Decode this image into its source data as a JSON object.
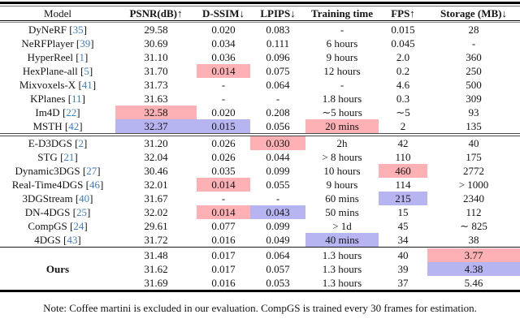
{
  "table": {
    "cite_color": "#3d7ec9",
    "highlight_colors": {
      "pink": "#fdb1b5",
      "blue": "#b7b5f1"
    },
    "columns": [
      {
        "label": "Model"
      },
      {
        "label": "PSNR(dB)↑"
      },
      {
        "label": "D-SSIM↓"
      },
      {
        "label": "LPIPS↓"
      },
      {
        "label": "Training time"
      },
      {
        "label": "FPS↑"
      },
      {
        "label": "Storage (MB)↓"
      }
    ],
    "groups": [
      {
        "rows": [
          {
            "model": "DyNeRF",
            "cite": "35",
            "values": [
              "29.58",
              "0.020",
              "0.083",
              "-",
              "0.015",
              "28"
            ],
            "hl": [
              null,
              null,
              null,
              null,
              null,
              null
            ]
          },
          {
            "model": "NeRFPlayer",
            "cite": "39",
            "values": [
              "30.69",
              "0.034",
              "0.111",
              "6 hours",
              "0.045",
              "-"
            ],
            "hl": [
              null,
              null,
              null,
              null,
              null,
              null
            ]
          },
          {
            "model": "HyperReel",
            "cite": "1",
            "values": [
              "31.10",
              "0.036",
              "0.096",
              "9 hours",
              "2.0",
              "360"
            ],
            "hl": [
              null,
              null,
              null,
              null,
              null,
              null
            ]
          },
          {
            "model": "HexPlane-all",
            "cite": "5",
            "values": [
              "31.70",
              "0.014",
              "0.075",
              "12 hours",
              "0.2",
              "250"
            ],
            "hl": [
              null,
              "pink",
              null,
              null,
              null,
              null
            ]
          },
          {
            "model": "Mixvoxels-X",
            "cite": "41",
            "values": [
              "31.73",
              "-",
              "0.064",
              "-",
              "4.6",
              "500"
            ],
            "hl": [
              null,
              null,
              null,
              null,
              null,
              null
            ]
          },
          {
            "model": "KPlanes",
            "cite": "11",
            "values": [
              "31.63",
              "-",
              "-",
              "1.8 hours",
              "0.3",
              "309"
            ],
            "hl": [
              null,
              null,
              null,
              null,
              null,
              null
            ]
          },
          {
            "model": "Im4D",
            "cite": "22",
            "values": [
              "32.58",
              "0.020",
              "0.208",
              "∼5 hours",
              "∼5",
              "93"
            ],
            "hl": [
              "pink",
              null,
              null,
              null,
              null,
              null
            ]
          },
          {
            "model": "MSTH",
            "cite": "42",
            "values": [
              "32.37",
              "0.015",
              "0.056",
              "20 mins",
              "2",
              "135"
            ],
            "hl": [
              "blue",
              "blue",
              null,
              "pink",
              null,
              null
            ]
          }
        ]
      },
      {
        "rows": [
          {
            "model": "E-D3DGS",
            "cite": "2",
            "values": [
              "31.20",
              "0.026",
              "0.030",
              "2h",
              "42",
              "40"
            ],
            "hl": [
              null,
              null,
              "pink",
              null,
              null,
              null
            ]
          },
          {
            "model": "STG",
            "cite": "21",
            "values": [
              "32.04",
              "0.026",
              "0.044",
              "> 8 hours",
              "110",
              "175"
            ],
            "hl": [
              null,
              null,
              null,
              null,
              null,
              null
            ]
          },
          {
            "model": "Dynamic3DGS",
            "cite": "27",
            "values": [
              "30.46",
              "0.035",
              "0.099",
              "10 hours",
              "460",
              "2772"
            ],
            "hl": [
              null,
              null,
              null,
              null,
              "pink",
              null
            ]
          },
          {
            "model": "Real-Time4DGS",
            "cite": "46",
            "values": [
              "32.01",
              "0.014",
              "0.055",
              "9 hours",
              "114",
              "> 1000"
            ],
            "hl": [
              null,
              "pink",
              null,
              null,
              null,
              null
            ]
          },
          {
            "model": "3DGStream",
            "cite": "40",
            "values": [
              "31.67",
              "-",
              "-",
              "60 mins",
              "215",
              "2340"
            ],
            "hl": [
              null,
              null,
              null,
              null,
              "blue",
              null
            ]
          },
          {
            "model": "DN-4DGS",
            "cite": "25",
            "values": [
              "32.02",
              "0.014",
              "0.043",
              "50 mins",
              "15",
              "112"
            ],
            "hl": [
              null,
              "pink",
              "blue",
              null,
              null,
              null
            ]
          },
          {
            "model": "CompGS",
            "cite": "24",
            "values": [
              "29.61",
              "0.077",
              "0.099",
              "> 1d",
              "45",
              "∼ 825"
            ],
            "hl": [
              null,
              null,
              null,
              null,
              null,
              null
            ]
          },
          {
            "model": "4DGS",
            "cite": "43",
            "values": [
              "31.72",
              "0.016",
              "0.049",
              "40 mins",
              "34",
              "38"
            ],
            "hl": [
              null,
              null,
              null,
              "blue",
              null,
              null
            ]
          }
        ]
      },
      {
        "rows": [
          {
            "model": "",
            "cite": "",
            "values": [
              "31.48",
              "0.017",
              "0.064",
              "1.3 hours",
              "40",
              "3.77"
            ],
            "hl": [
              null,
              null,
              null,
              null,
              null,
              "pink"
            ]
          },
          {
            "model": "Ours",
            "cite": "",
            "bold": true,
            "values": [
              "31.62",
              "0.017",
              "0.057",
              "1.3 hours",
              "39",
              "4.38"
            ],
            "hl": [
              null,
              null,
              null,
              null,
              null,
              "blue"
            ]
          },
          {
            "model": "",
            "cite": "",
            "values": [
              "31.69",
              "0.016",
              "0.053",
              "1.3 hours",
              "37",
              "5.46"
            ],
            "hl": [
              null,
              null,
              null,
              null,
              null,
              null
            ]
          }
        ]
      }
    ]
  },
  "note": "Note: Coffee martini is excluded in our evaluation. CompGS is trained every 30 frames for estimation."
}
